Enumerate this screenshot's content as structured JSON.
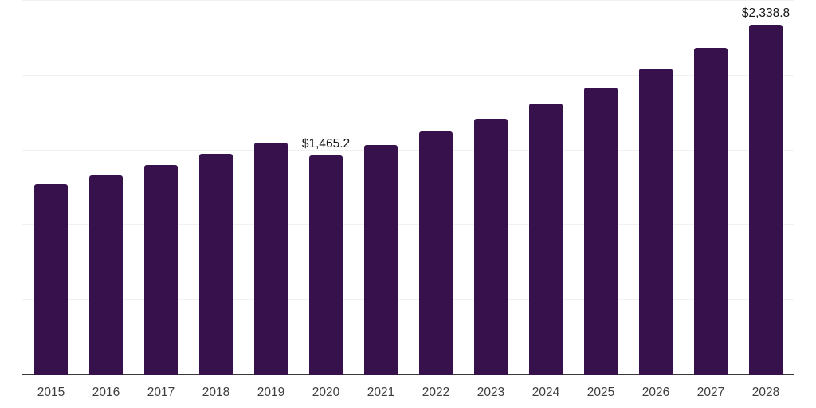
{
  "chart_data": {
    "type": "bar",
    "title": "",
    "xlabel": "",
    "ylabel": "",
    "categories": [
      "2015",
      "2016",
      "2017",
      "2018",
      "2019",
      "2020",
      "2021",
      "2022",
      "2023",
      "2024",
      "2025",
      "2026",
      "2027",
      "2028"
    ],
    "values": [
      1275,
      1331,
      1400,
      1475,
      1550,
      1465.2,
      1536,
      1628,
      1714,
      1810,
      1920,
      2048,
      2186,
      2338.8
    ],
    "data_labels": [
      "",
      "",
      "",
      "",
      "",
      "$1,465.2",
      "",
      "",
      "",
      "",
      "",
      "",
      "",
      "$2,338.8"
    ],
    "ylim": [
      0,
      2500
    ],
    "grid_interval": 500,
    "grid_on": true,
    "legend_position": "none",
    "bar_color": "#36114c",
    "grid_color": "#f1f1f1",
    "axis_line_color": "#3a3a3a",
    "tick_label_color": "#3d3d3d",
    "data_label_color": "#141414",
    "background_color": "#ffffff"
  }
}
